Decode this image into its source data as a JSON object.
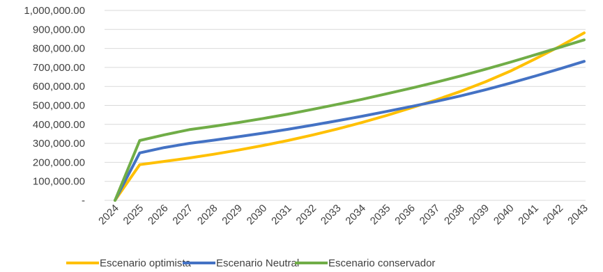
{
  "chart_data": {
    "type": "line",
    "x": [
      "2024",
      "2025",
      "2026",
      "2027",
      "2028",
      "2029",
      "2030",
      "2031",
      "2032",
      "2033",
      "2034",
      "2035",
      "2036",
      "2037",
      "2038",
      "2039",
      "2040",
      "2041",
      "2042",
      "2043"
    ],
    "ylim": [
      0,
      1000000
    ],
    "yticks": [
      {
        "value": 0,
        "label": "-"
      },
      {
        "value": 100000,
        "label": "100,000.00"
      },
      {
        "value": 200000,
        "label": "200,000.00"
      },
      {
        "value": 300000,
        "label": "300,000.00"
      },
      {
        "value": 400000,
        "label": "400,000.00"
      },
      {
        "value": 500000,
        "label": "500,000.00"
      },
      {
        "value": 600000,
        "label": "600,000.00"
      },
      {
        "value": 700000,
        "label": "700,000.00"
      },
      {
        "value": 800000,
        "label": "800,000.00"
      },
      {
        "value": 900000,
        "label": "900,000.00"
      },
      {
        "value": 1000000,
        "label": "1,000,000.00"
      }
    ],
    "grid": true,
    "legend_position": "bottom",
    "series": [
      {
        "name": "Escenario optimista",
        "color": "#FFC000",
        "values": [
          0,
          188000,
          205000,
          223000,
          243000,
          265000,
          289000,
          315000,
          344000,
          376000,
          410000,
          447000,
          487000,
          529000,
          574000,
          624000,
          680000,
          744000,
          810000,
          882000
        ]
      },
      {
        "name": "Escenario Neutral",
        "color": "#4472C4",
        "values": [
          0,
          250000,
          278000,
          300000,
          317000,
          335000,
          354000,
          374000,
          396000,
          419000,
          443000,
          468000,
          494000,
          521000,
          550000,
          582000,
          617000,
          654000,
          692000,
          732000
        ]
      },
      {
        "name": "Escenario conservador",
        "color": "#70AD47",
        "values": [
          0,
          315000,
          345000,
          372000,
          390000,
          410000,
          431000,
          454000,
          479000,
          505000,
          532000,
          561000,
          591000,
          622000,
          655000,
          690000,
          727000,
          766000,
          805000,
          845000
        ]
      }
    ]
  }
}
